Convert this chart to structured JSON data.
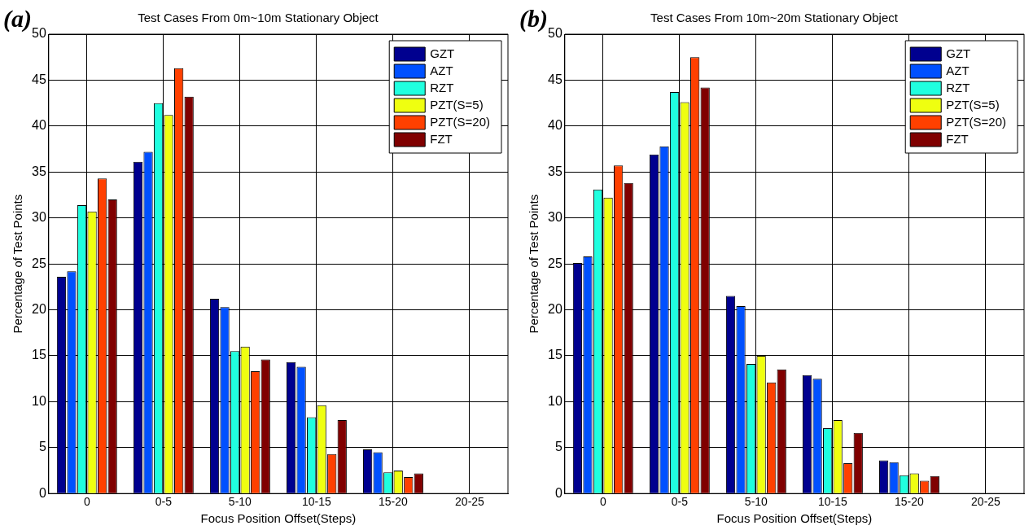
{
  "chart_data": [
    {
      "type": "bar",
      "title": "Test Cases From 0m~10m Stationary Object",
      "xlabel": "Focus Position Offset(Steps)",
      "ylabel": "Percentage of Test Points",
      "annotations": [
        "(a)"
      ],
      "categories": [
        "0",
        "0-5",
        "5-10",
        "10-15",
        "15-20",
        "20-25"
      ],
      "series": [
        {
          "name": "GZT",
          "color": "#00008f",
          "values": [
            23.6,
            36.1,
            21.2,
            14.3,
            4.8,
            0
          ]
        },
        {
          "name": "AZT",
          "color": "#0050ff",
          "values": [
            24.2,
            37.2,
            20.3,
            13.8,
            4.5,
            0
          ]
        },
        {
          "name": "RZT",
          "color": "#20ffdf",
          "values": [
            31.4,
            42.5,
            15.5,
            8.3,
            2.3,
            0
          ]
        },
        {
          "name": "PZT(S=5)",
          "color": "#efff10",
          "values": [
            30.7,
            41.2,
            16.0,
            9.6,
            2.5,
            0
          ]
        },
        {
          "name": "PZT(S=20)",
          "color": "#ff4000",
          "values": [
            34.3,
            46.3,
            13.3,
            4.3,
            1.8,
            0
          ]
        },
        {
          "name": "FZT",
          "color": "#800000",
          "values": [
            32.0,
            43.2,
            14.6,
            8.0,
            2.2,
            0
          ]
        }
      ],
      "ylim": [
        0,
        50
      ],
      "yticks": [
        0,
        5,
        10,
        15,
        20,
        25,
        30,
        35,
        40,
        45,
        50
      ],
      "grid": true,
      "legend": "top right"
    },
    {
      "type": "bar",
      "title": "Test Cases From 10m~20m Stationary Object",
      "xlabel": "Focus Position Offset(Steps)",
      "ylabel": "Percentage of Test Points",
      "annotations": [
        "(b)"
      ],
      "categories": [
        "0",
        "0-5",
        "5-10",
        "10-15",
        "15-20",
        "20-25"
      ],
      "series": [
        {
          "name": "GZT",
          "color": "#00008f",
          "values": [
            25.1,
            36.9,
            21.5,
            12.9,
            3.6,
            0
          ]
        },
        {
          "name": "AZT",
          "color": "#0050ff",
          "values": [
            25.8,
            37.8,
            20.4,
            12.5,
            3.4,
            0
          ]
        },
        {
          "name": "RZT",
          "color": "#20ffdf",
          "values": [
            33.1,
            43.7,
            14.1,
            7.1,
            2.0,
            0
          ]
        },
        {
          "name": "PZT(S=5)",
          "color": "#efff10",
          "values": [
            32.2,
            42.6,
            15.0,
            8.0,
            2.2,
            0
          ]
        },
        {
          "name": "PZT(S=20)",
          "color": "#ff4000",
          "values": [
            35.7,
            47.5,
            12.1,
            3.3,
            1.4,
            0
          ]
        },
        {
          "name": "FZT",
          "color": "#800000",
          "values": [
            33.8,
            44.2,
            13.5,
            6.6,
            1.9,
            0
          ]
        }
      ],
      "ylim": [
        0,
        50
      ],
      "yticks": [
        0,
        5,
        10,
        15,
        20,
        25,
        30,
        35,
        40,
        45,
        50
      ],
      "grid": true,
      "legend": "top right"
    }
  ]
}
